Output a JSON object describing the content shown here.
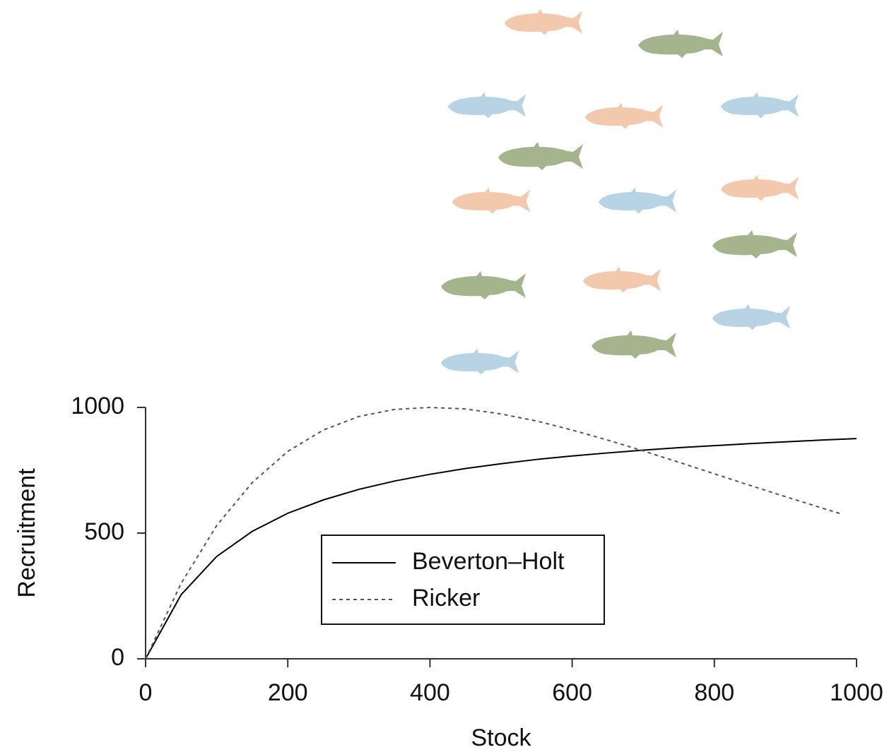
{
  "chart_data": {
    "type": "line",
    "x_label": "Stock",
    "y_label": "Recruitment",
    "xlim": [
      0,
      1000
    ],
    "xticks": [
      0,
      200,
      400,
      600,
      800,
      1000
    ],
    "ylim": [
      0,
      1000
    ],
    "yticks": [
      0,
      500,
      1000
    ],
    "legend": "center",
    "series": [
      {
        "name": "Beverton–Holt",
        "color": "#000000",
        "linestyle": "solid",
        "x": [
          0,
          50,
          100,
          150,
          200,
          250,
          300,
          350,
          400,
          450,
          500,
          550,
          600,
          650,
          700,
          750,
          800,
          850,
          900,
          950,
          1000
        ],
        "values": [
          0,
          255,
          407,
          507,
          579,
          632,
          674,
          707,
          734,
          757,
          776,
          793,
          807,
          819,
          830,
          840,
          848,
          856,
          863,
          870,
          876
        ]
      },
      {
        "name": "Ricker",
        "color": "#555555",
        "linestyle": "dashed",
        "x": [
          0,
          50,
          100,
          150,
          200,
          250,
          300,
          350,
          400,
          450,
          500,
          550,
          600,
          650,
          700,
          750,
          800,
          850,
          900,
          950,
          980
        ],
        "values": [
          0,
          300,
          530,
          701,
          825,
          910,
          964,
          992,
          1000,
          994,
          974,
          946,
          910,
          870,
          827,
          782,
          736,
          690,
          645,
          601,
          575
        ]
      }
    ]
  }
}
